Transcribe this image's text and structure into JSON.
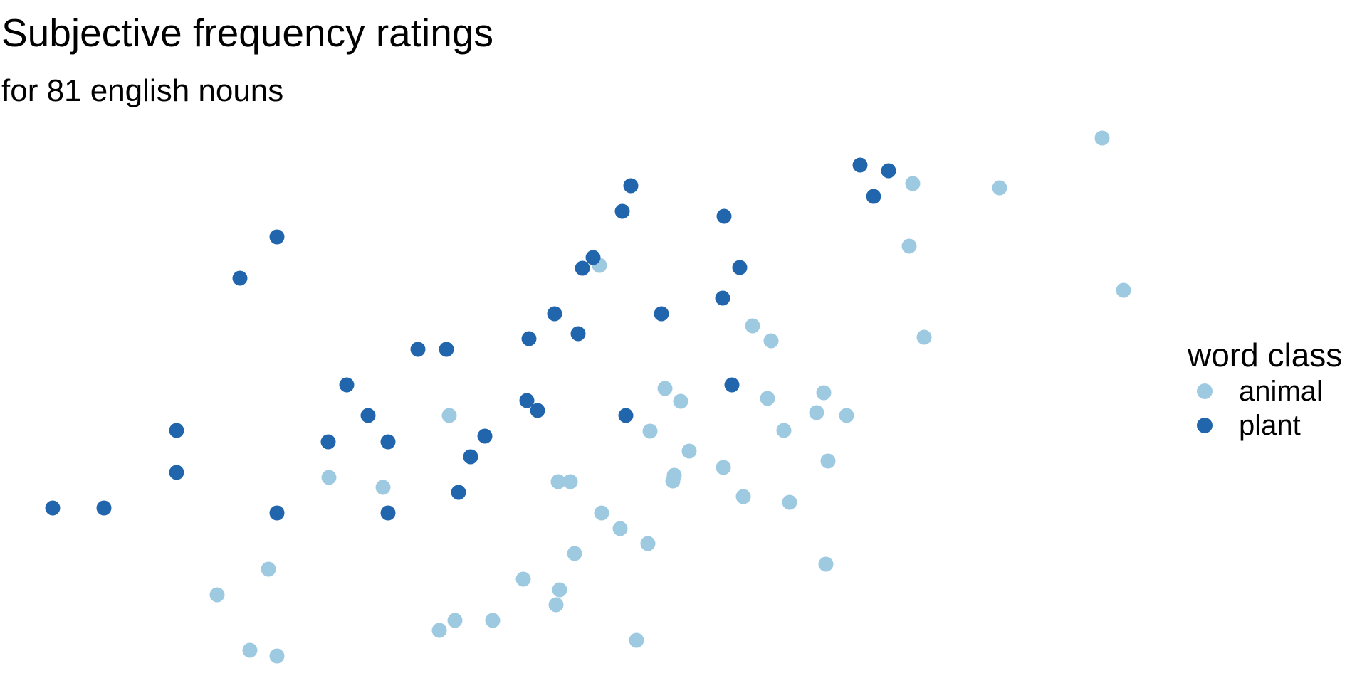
{
  "chart_data": {
    "type": "scatter",
    "title": "Subjective frequency ratings",
    "subtitle": "for 81 english nouns",
    "xlabel": "",
    "ylabel": "",
    "axes_visible": false,
    "grid": false,
    "legend_title": "word class",
    "legend_position": "right",
    "series": [
      {
        "name": "animal",
        "color": "#9ECAE1",
        "points": [
          [
            1548,
            194
          ],
          [
            1404,
            264
          ],
          [
            1282,
            258
          ],
          [
            1578,
            408
          ],
          [
            1277,
            346
          ],
          [
            1298,
            474
          ],
          [
            842,
            373
          ],
          [
            1057,
            458
          ],
          [
            1083,
            479
          ],
          [
            934,
            546
          ],
          [
            956,
            564
          ],
          [
            1157,
            552
          ],
          [
            1078,
            560
          ],
          [
            1147,
            580
          ],
          [
            1189,
            584
          ],
          [
            1101,
            605
          ],
          [
            631,
            584
          ],
          [
            913,
            606
          ],
          [
            968,
            634
          ],
          [
            1016,
            657
          ],
          [
            945,
            676
          ],
          [
            1163,
            648
          ],
          [
            462,
            671
          ],
          [
            538,
            685
          ],
          [
            784,
            677
          ],
          [
            801,
            677
          ],
          [
            947,
            668
          ],
          [
            1044,
            698
          ],
          [
            1109,
            706
          ],
          [
            845,
            721
          ],
          [
            871,
            743
          ],
          [
            910,
            764
          ],
          [
            807,
            778
          ],
          [
            1160,
            793
          ],
          [
            377,
            800
          ],
          [
            305,
            836
          ],
          [
            735,
            814
          ],
          [
            786,
            829
          ],
          [
            781,
            850
          ],
          [
            639,
            872
          ],
          [
            692,
            872
          ],
          [
            617,
            886
          ],
          [
            894,
            900
          ],
          [
            351,
            914
          ],
          [
            389,
            922
          ]
        ]
      },
      {
        "name": "plant",
        "color": "#2166AC",
        "points": [
          [
            1208,
            232
          ],
          [
            1248,
            240
          ],
          [
            1227,
            276
          ],
          [
            886,
            261
          ],
          [
            874,
            297
          ],
          [
            1017,
            304
          ],
          [
            389,
            333
          ],
          [
            337,
            391
          ],
          [
            833,
            362
          ],
          [
            818,
            377
          ],
          [
            1039,
            376
          ],
          [
            1015,
            419
          ],
          [
            779,
            441
          ],
          [
            929,
            441
          ],
          [
            812,
            469
          ],
          [
            743,
            476
          ],
          [
            587,
            491
          ],
          [
            627,
            491
          ],
          [
            487,
            541
          ],
          [
            1028,
            541
          ],
          [
            740,
            563
          ],
          [
            755,
            577
          ],
          [
            517,
            584
          ],
          [
            879,
            584
          ],
          [
            248,
            605
          ],
          [
            681,
            613
          ],
          [
            461,
            621
          ],
          [
            545,
            621
          ],
          [
            661,
            642
          ],
          [
            248,
            664
          ],
          [
            644,
            692
          ],
          [
            74,
            714
          ],
          [
            146,
            714
          ],
          [
            389,
            721
          ],
          [
            545,
            721
          ]
        ]
      }
    ]
  }
}
